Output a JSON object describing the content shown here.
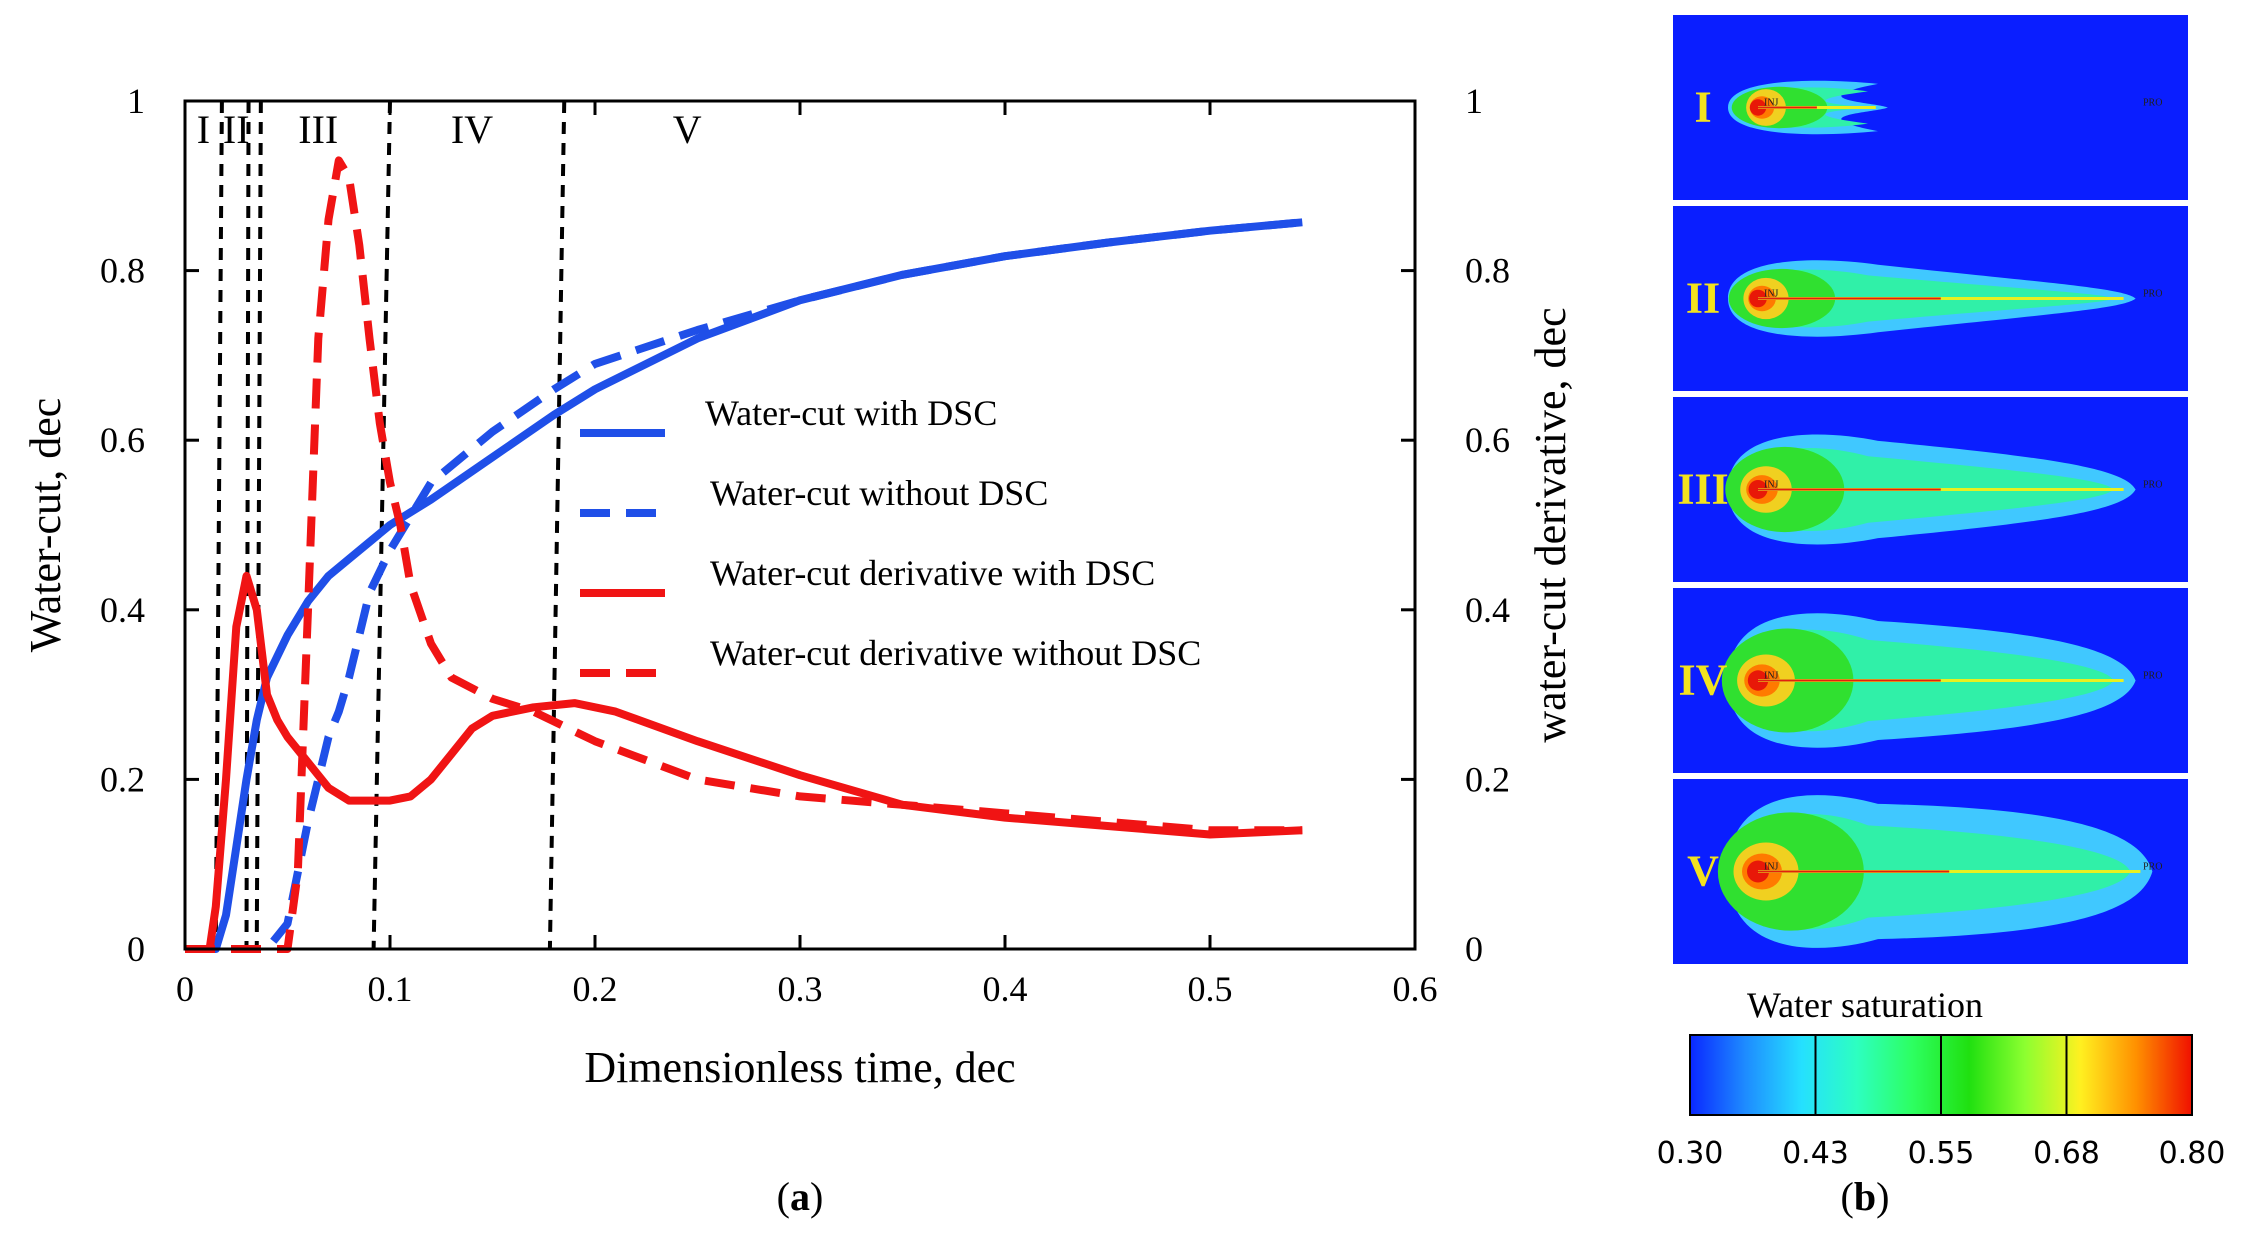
{
  "panel_a": {
    "caption_prefix": "(",
    "caption_letter": "a",
    "caption_suffix": ")"
  },
  "panel_b": {
    "caption_prefix": "(",
    "caption_letter": "b",
    "caption_suffix": ")",
    "colorbar": {
      "title": "Water saturation",
      "ticks": [
        "0.30",
        "0.43",
        "0.55",
        "0.68",
        "0.80"
      ],
      "colors": [
        "#0a28ff",
        "#1e8cff",
        "#25e0ff",
        "#2dffc0",
        "#2dff60",
        "#20e010",
        "#8cff30",
        "#fff020",
        "#ff9000",
        "#f01000"
      ]
    },
    "map_panels": [
      {
        "label": "I",
        "front": 0.34,
        "width": 0.35,
        "core": 0.22,
        "well": "INJ",
        "producer": "PRO",
        "producer_reached": false
      },
      {
        "label": "II",
        "front": 0.93,
        "width": 0.5,
        "core": 0.28,
        "well": "INJ",
        "producer": "PRO",
        "producer_reached": true
      },
      {
        "label": "III",
        "front": 0.93,
        "width": 0.72,
        "core": 0.35,
        "well": "INJ",
        "producer": "PRO",
        "producer_reached": true
      },
      {
        "label": "IV",
        "front": 0.93,
        "width": 0.88,
        "core": 0.42,
        "well": "INJ",
        "producer": "PRO",
        "producer_reached": true
      },
      {
        "label": "V",
        "front": 0.97,
        "width": 1.0,
        "core": 0.5,
        "well": "INJ",
        "producer": "PRO",
        "producer_reached": true
      }
    ],
    "map_colors": {
      "background": "#0a1eff",
      "label": "#f2e21e"
    }
  },
  "chart_data": {
    "type": "line",
    "title": "",
    "xlabel": "Dimensionless time, dec",
    "ylabel": "Water-cut, dec",
    "y2label": "water-cut derivative, dec",
    "xlim": [
      0,
      0.6
    ],
    "ylim": [
      0,
      1
    ],
    "y2lim": [
      0,
      1
    ],
    "xticks": [
      "0",
      "0.1",
      "0.2",
      "0.3",
      "0.4",
      "0.5",
      "0.6"
    ],
    "yticks": [
      "0",
      "0.2",
      "0.4",
      "0.6",
      "0.8",
      "1"
    ],
    "y2ticks": [
      "0",
      "0.2",
      "0.4",
      "0.6",
      "0.8",
      "1"
    ],
    "grid": false,
    "legend_position": "center-right",
    "series": [
      {
        "name": "Water-cut with DSC",
        "color": "#1f4fe8",
        "dash": "solid",
        "x": [
          0,
          0.015,
          0.02,
          0.025,
          0.03,
          0.035,
          0.04,
          0.05,
          0.06,
          0.07,
          0.08,
          0.09,
          0.1,
          0.12,
          0.15,
          0.18,
          0.2,
          0.25,
          0.3,
          0.35,
          0.4,
          0.45,
          0.5,
          0.545
        ],
        "y": [
          0,
          0,
          0.04,
          0.12,
          0.2,
          0.27,
          0.32,
          0.37,
          0.41,
          0.44,
          0.46,
          0.48,
          0.5,
          0.53,
          0.58,
          0.63,
          0.66,
          0.72,
          0.765,
          0.795,
          0.817,
          0.833,
          0.847,
          0.857
        ]
      },
      {
        "name": "Water-cut without DSC",
        "color": "#1f4fe8",
        "dash": "dashed",
        "x": [
          0,
          0.04,
          0.05,
          0.06,
          0.065,
          0.07,
          0.075,
          0.08,
          0.085,
          0.09,
          0.1,
          0.11,
          0.12,
          0.15,
          0.18,
          0.2,
          0.25,
          0.3,
          0.35,
          0.4,
          0.45,
          0.5,
          0.545
        ],
        "y": [
          0,
          0,
          0.03,
          0.15,
          0.2,
          0.25,
          0.28,
          0.32,
          0.37,
          0.42,
          0.47,
          0.51,
          0.55,
          0.61,
          0.66,
          0.69,
          0.73,
          0.765,
          0.795,
          0.817,
          0.833,
          0.847,
          0.857
        ]
      },
      {
        "name": "Water-cut derivative with DSC",
        "color": "#f01414",
        "dash": "solid",
        "x": [
          0,
          0.012,
          0.015,
          0.02,
          0.025,
          0.03,
          0.035,
          0.04,
          0.045,
          0.05,
          0.06,
          0.07,
          0.08,
          0.09,
          0.1,
          0.11,
          0.12,
          0.13,
          0.14,
          0.15,
          0.17,
          0.19,
          0.21,
          0.25,
          0.3,
          0.35,
          0.4,
          0.45,
          0.5,
          0.545
        ],
        "y": [
          0,
          0,
          0.05,
          0.2,
          0.38,
          0.44,
          0.4,
          0.3,
          0.27,
          0.25,
          0.22,
          0.19,
          0.175,
          0.175,
          0.175,
          0.18,
          0.2,
          0.23,
          0.26,
          0.275,
          0.285,
          0.29,
          0.28,
          0.245,
          0.205,
          0.17,
          0.155,
          0.145,
          0.135,
          0.14
        ]
      },
      {
        "name": "Water-cut derivative without DSC",
        "color": "#f01414",
        "dash": "dashed",
        "x": [
          0,
          0.05,
          0.055,
          0.06,
          0.065,
          0.07,
          0.075,
          0.08,
          0.085,
          0.09,
          0.095,
          0.1,
          0.105,
          0.11,
          0.12,
          0.13,
          0.15,
          0.17,
          0.2,
          0.25,
          0.3,
          0.35,
          0.4,
          0.45,
          0.5,
          0.545
        ],
        "y": [
          0,
          0,
          0.09,
          0.4,
          0.72,
          0.86,
          0.93,
          0.91,
          0.83,
          0.72,
          0.62,
          0.55,
          0.5,
          0.43,
          0.36,
          0.32,
          0.295,
          0.28,
          0.245,
          0.2,
          0.18,
          0.17,
          0.16,
          0.15,
          0.14,
          0.14
        ]
      }
    ],
    "region_lines_x": [
      0.018,
      0.031,
      0.037,
      0.1,
      0.185
    ],
    "region_lines_bottom_x": [
      0.015,
      0.03,
      0.035,
      0.092,
      0.178
    ],
    "region_labels": [
      {
        "text": "I",
        "x": 0.009
      },
      {
        "text": "II",
        "x": 0.025
      },
      {
        "text": "III",
        "x": 0.065
      },
      {
        "text": "IV",
        "x": 0.14
      },
      {
        "text": "V",
        "x": 0.245
      }
    ]
  }
}
